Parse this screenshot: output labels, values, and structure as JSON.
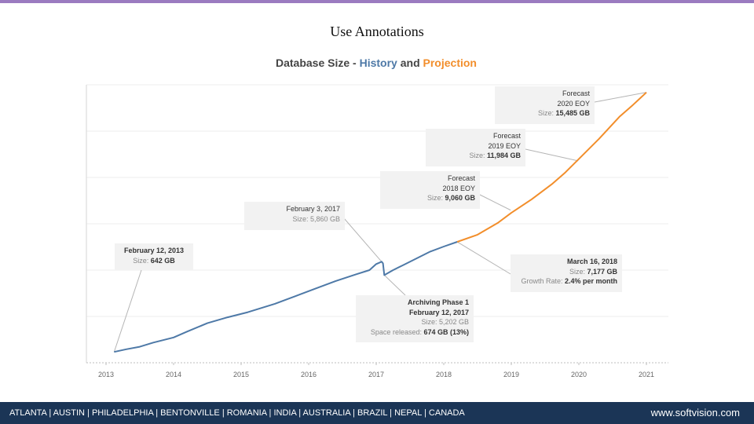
{
  "slide": {
    "title": "Use Annotations",
    "accent_color": "#9b7bc0"
  },
  "chart_data": {
    "type": "line",
    "title_parts": {
      "prefix": "Database Size - ",
      "history": "History",
      "connector": " and ",
      "projection": "Projection"
    },
    "x_tick_labels": [
      "2013",
      "2014",
      "2015",
      "2016",
      "2017",
      "2018",
      "2019",
      "2020",
      "2021"
    ],
    "xlim": [
      2013.0,
      2021.0
    ],
    "ylim": [
      0,
      16500
    ],
    "grid": true,
    "series": [
      {
        "name": "History",
        "color": "#4e79a7",
        "x": [
          2013.12,
          2013.3,
          2013.5,
          2013.7,
          2014.0,
          2014.2,
          2014.5,
          2014.8,
          2015.1,
          2015.5,
          2015.8,
          2016.1,
          2016.4,
          2016.7,
          2016.9,
          2017.0,
          2017.08,
          2017.1,
          2017.12,
          2017.25,
          2017.4,
          2017.6,
          2017.8,
          2018.0,
          2018.2
        ],
        "y": [
          642,
          800,
          950,
          1200,
          1500,
          1850,
          2350,
          2700,
          3000,
          3500,
          3950,
          4400,
          4850,
          5250,
          5500,
          5860,
          6000,
          5900,
          5202,
          5500,
          5800,
          6200,
          6600,
          6900,
          7177
        ]
      },
      {
        "name": "Projection",
        "color": "#f28e2b",
        "x": [
          2018.2,
          2018.5,
          2018.8,
          2019.0,
          2019.3,
          2019.6,
          2019.8,
          2020.0,
          2020.3,
          2020.6,
          2020.8,
          2021.0
        ],
        "y": [
          7177,
          7600,
          8300,
          8900,
          9700,
          10600,
          11300,
          12100,
          13300,
          14600,
          15300,
          16050
        ]
      }
    ],
    "annotations": [
      {
        "id": "feb2013",
        "lines": [
          {
            "text": "February 12, 2013",
            "cls": "val"
          },
          {
            "label": "Size: ",
            "value": "642 GB"
          }
        ]
      },
      {
        "id": "feb2017",
        "lines": [
          {
            "text": "February 3, 2017",
            "cls": "plain"
          },
          {
            "label": "Size: ",
            "value": "5,860 GB",
            "plain": true
          }
        ]
      },
      {
        "id": "archive",
        "lines": [
          {
            "text": "Archiving Phase 1",
            "cls": "val"
          },
          {
            "text": "February 12, 2017",
            "cls": "val"
          },
          {
            "label": "Size: ",
            "value": "5,202 GB",
            "plain": true
          },
          {
            "label": "Space released: ",
            "value": "674 GB (13%)"
          }
        ]
      },
      {
        "id": "mar2018",
        "lines": [
          {
            "text": "March 16, 2018",
            "cls": "val"
          },
          {
            "label": "Size: ",
            "value": "7,177 GB"
          },
          {
            "label": "Growth Rate: ",
            "value": "2.4% per month"
          }
        ]
      },
      {
        "id": "fc2018",
        "lines": [
          {
            "text": "Forecast",
            "cls": "plain"
          },
          {
            "text": "2018 EOY",
            "cls": "plain"
          },
          {
            "label": "Size: ",
            "value": "9,060 GB"
          }
        ]
      },
      {
        "id": "fc2019",
        "lines": [
          {
            "text": "Forecast",
            "cls": "plain"
          },
          {
            "text": "2019 EOY",
            "cls": "plain"
          },
          {
            "label": "Size: ",
            "value": "11,984 GB"
          }
        ]
      },
      {
        "id": "fc2020",
        "lines": [
          {
            "text": "Forecast",
            "cls": "plain"
          },
          {
            "text": "2020 EOY",
            "cls": "plain"
          },
          {
            "label": "Size: ",
            "value": "15,485 GB"
          }
        ]
      }
    ]
  },
  "footer": {
    "locations": "ATLANTA | AUSTIN | PHILADELPHIA | BENTONVILLE | ROMANIA | INDIA | AUSTRALIA | BRAZIL | NEPAL | CANADA",
    "website": "www.softvision.com",
    "bg_color": "#1b3556"
  }
}
